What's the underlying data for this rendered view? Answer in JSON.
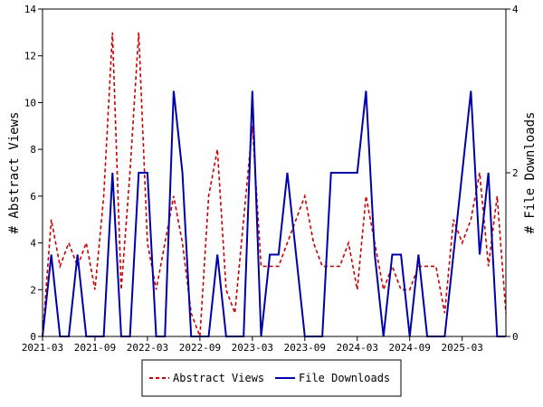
{
  "chart_data": {
    "type": "line",
    "ylabel_left": "# Abstract Views",
    "ylabel_right": "# File Downloads",
    "xtick_labels": [
      "2021-03",
      "2021-09",
      "2022-03",
      "2022-09",
      "2023-03",
      "2023-09",
      "2024-03",
      "2024-09",
      "2025-03"
    ],
    "y_left": {
      "range": [
        0,
        14
      ],
      "ticks": [
        0,
        2,
        4,
        6,
        8,
        10,
        12,
        14
      ]
    },
    "y_right": {
      "range": [
        0,
        4
      ],
      "ticks": [
        0,
        2,
        4
      ]
    },
    "grid": false,
    "legend_position": "bottom-center",
    "x": [
      "2021-03",
      "2021-04",
      "2021-05",
      "2021-06",
      "2021-07",
      "2021-08",
      "2021-09",
      "2021-10",
      "2021-11",
      "2021-12",
      "2022-01",
      "2022-02",
      "2022-03",
      "2022-04",
      "2022-05",
      "2022-06",
      "2022-07",
      "2022-08",
      "2022-09",
      "2022-10",
      "2022-11",
      "2022-12",
      "2023-01",
      "2023-02",
      "2023-03",
      "2023-04",
      "2023-05",
      "2023-06",
      "2023-07",
      "2023-08",
      "2023-09",
      "2023-10",
      "2023-11",
      "2023-12",
      "2024-01",
      "2024-02",
      "2024-03",
      "2024-04",
      "2024-05",
      "2024-06",
      "2024-07",
      "2024-08",
      "2024-09",
      "2024-10",
      "2024-11",
      "2024-12",
      "2025-01",
      "2025-02",
      "2025-03",
      "2025-04",
      "2025-05",
      "2025-06",
      "2025-07",
      "2025-08"
    ],
    "series": [
      {
        "name": "Abstract Views",
        "axis": "left",
        "color": "#cc0000",
        "dash": "dashed",
        "values": [
          0,
          5,
          3,
          4,
          3,
          4,
          2,
          6,
          13,
          2,
          7,
          13,
          4,
          2,
          4,
          6,
          4,
          1,
          0,
          6,
          8,
          2,
          1,
          5,
          9,
          3,
          3,
          3,
          4,
          5,
          6,
          4,
          3,
          3,
          3,
          4,
          2,
          6,
          4,
          2,
          3,
          2,
          2,
          3,
          3,
          3,
          1,
          5,
          4,
          5,
          7,
          3,
          6,
          1
        ]
      },
      {
        "name": "File Downloads",
        "axis": "right",
        "color": "#0000aa",
        "dash": "solid",
        "values": [
          0,
          1,
          0,
          0,
          1,
          0,
          0,
          0,
          2,
          0,
          0,
          2,
          2,
          0,
          0,
          3,
          2,
          0,
          0,
          0,
          1,
          0,
          0,
          0,
          3,
          0,
          1,
          1,
          2,
          1,
          0,
          0,
          0,
          2,
          2,
          2,
          2,
          3,
          1,
          0,
          1,
          1,
          0,
          1,
          0,
          0,
          0,
          1,
          2,
          3,
          1,
          2,
          0,
          0
        ]
      }
    ],
    "legend": [
      {
        "label": "Abstract Views",
        "color": "#cc0000",
        "dash": "dashed"
      },
      {
        "label": "File Downloads",
        "color": "#0000aa",
        "dash": "solid"
      }
    ]
  }
}
